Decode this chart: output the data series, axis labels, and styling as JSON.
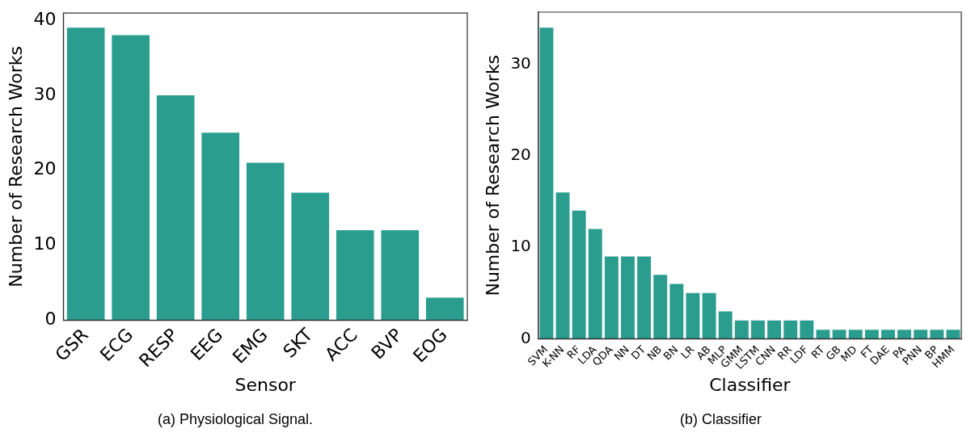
{
  "chart_data": [
    {
      "type": "bar",
      "title": "(a) Physiological Signal.",
      "xlabel": "Sensor",
      "ylabel": "Number of Research Works",
      "categories": [
        "GSR",
        "ECG",
        "RESP",
        "EEG",
        "EMG",
        "SKT",
        "ACC",
        "BVP",
        "EOG"
      ],
      "values": [
        39,
        38,
        30,
        25,
        21,
        17,
        12,
        12,
        3
      ],
      "color": "#2a9d8f",
      "ylim": [
        0,
        40.95
      ],
      "yticks": [
        0,
        10,
        20,
        30,
        40
      ],
      "grid": false,
      "legend": false
    },
    {
      "type": "bar",
      "title": "(b) Classifier",
      "xlabel": "Classifier",
      "ylabel": "Number of Research Works",
      "categories": [
        "SVM",
        "K-NN",
        "RF",
        "LDA",
        "QDA",
        "NN",
        "DT",
        "NB",
        "BN",
        "LR",
        "AB",
        "MLP",
        "GMM",
        "LSTM",
        "CNN",
        "RR",
        "LDF",
        "RT",
        "GB",
        "MD",
        "FT",
        "DAE",
        "PA",
        "PNN",
        "BP",
        "HMM"
      ],
      "values": [
        34,
        16,
        14,
        12,
        9,
        9,
        9,
        7,
        6,
        5,
        5,
        3,
        2,
        2,
        2,
        2,
        2,
        1,
        1,
        1,
        1,
        1,
        1,
        1,
        1,
        1
      ],
      "color": "#2a9d8f",
      "ylim": [
        0,
        35.7
      ],
      "yticks": [
        0,
        10,
        20,
        30
      ],
      "grid": false,
      "legend": false
    }
  ]
}
